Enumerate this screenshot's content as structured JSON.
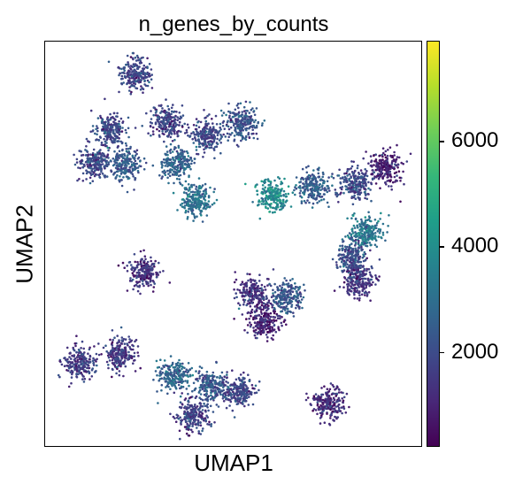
{
  "chart_data": {
    "type": "scatter",
    "title": "n_genes_by_counts",
    "xlabel": "UMAP1",
    "ylabel": "UMAP2",
    "grid": false,
    "colorbar": {
      "colormap": "viridis",
      "range": [
        200,
        7900
      ],
      "ticks": [
        2000,
        4000,
        6000
      ],
      "colors": [
        "#440154",
        "#482878",
        "#3e4989",
        "#31688e",
        "#26828e",
        "#1f9e89",
        "#35b779",
        "#6ece58",
        "#b5de2b",
        "#fde725"
      ]
    },
    "clusters": [
      {
        "x": 0.24,
        "y": 0.92,
        "value": 1800
      },
      {
        "x": 0.17,
        "y": 0.78,
        "value": 1900
      },
      {
        "x": 0.32,
        "y": 0.8,
        "value": 1700
      },
      {
        "x": 0.43,
        "y": 0.77,
        "value": 1800
      },
      {
        "x": 0.52,
        "y": 0.8,
        "value": 2100
      },
      {
        "x": 0.13,
        "y": 0.7,
        "value": 1900
      },
      {
        "x": 0.21,
        "y": 0.7,
        "value": 2300
      },
      {
        "x": 0.35,
        "y": 0.7,
        "value": 2600
      },
      {
        "x": 0.4,
        "y": 0.61,
        "value": 3000
      },
      {
        "x": 0.9,
        "y": 0.69,
        "value": 900
      },
      {
        "x": 0.82,
        "y": 0.65,
        "value": 1900
      },
      {
        "x": 0.71,
        "y": 0.64,
        "value": 2500
      },
      {
        "x": 0.6,
        "y": 0.62,
        "value": 3800
      },
      {
        "x": 0.85,
        "y": 0.53,
        "value": 3300
      },
      {
        "x": 0.81,
        "y": 0.47,
        "value": 2000
      },
      {
        "x": 0.83,
        "y": 0.41,
        "value": 1500
      },
      {
        "x": 0.26,
        "y": 0.43,
        "value": 1300
      },
      {
        "x": 0.55,
        "y": 0.38,
        "value": 1400
      },
      {
        "x": 0.58,
        "y": 0.31,
        "value": 1000
      },
      {
        "x": 0.64,
        "y": 0.37,
        "value": 2400
      },
      {
        "x": 0.09,
        "y": 0.21,
        "value": 1600
      },
      {
        "x": 0.2,
        "y": 0.23,
        "value": 1500
      },
      {
        "x": 0.34,
        "y": 0.18,
        "value": 2700
      },
      {
        "x": 0.44,
        "y": 0.15,
        "value": 2300
      },
      {
        "x": 0.51,
        "y": 0.14,
        "value": 1900
      },
      {
        "x": 0.39,
        "y": 0.08,
        "value": 1700
      },
      {
        "x": 0.75,
        "y": 0.11,
        "value": 1200
      }
    ]
  }
}
